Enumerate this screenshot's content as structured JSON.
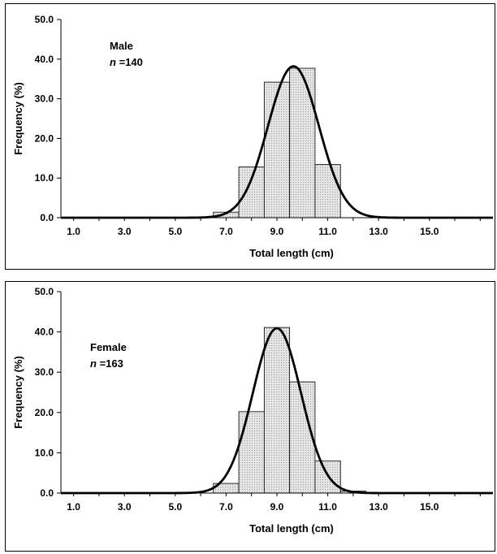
{
  "chart_data": [
    {
      "type": "bar",
      "annotation": {
        "label": "Male",
        "n_prefix": "n",
        "n_value": "=140"
      },
      "xlabel": "Total length (cm)",
      "ylabel": "Frequency (%)",
      "ylim": [
        0,
        50
      ],
      "xlim": [
        0.5,
        17.5
      ],
      "y_ticks": [
        "0.0",
        "10.0",
        "20.0",
        "30.0",
        "40.0",
        "50.0"
      ],
      "x_ticks": [
        "1.0",
        "3.0",
        "5.0",
        "7.0",
        "9.0",
        "11.0",
        "13.0",
        "15.0"
      ],
      "bin_width": 1.0,
      "bins": [
        {
          "x": 7.0,
          "value": 1.4
        },
        {
          "x": 8.0,
          "value": 12.8
        },
        {
          "x": 9.0,
          "value": 34.2
        },
        {
          "x": 10.0,
          "value": 37.7
        },
        {
          "x": 11.0,
          "value": 13.4
        }
      ],
      "curve": {
        "mean": 9.65,
        "sd": 1.0,
        "peak": 38.2
      }
    },
    {
      "type": "bar",
      "annotation": {
        "label": "Female",
        "n_prefix": "n",
        "n_value": "=163"
      },
      "xlabel": "Total length (cm)",
      "ylabel": "Frequency (%)",
      "ylim": [
        0,
        50
      ],
      "xlim": [
        0.5,
        17.5
      ],
      "y_ticks": [
        "0.0",
        "10.0",
        "20.0",
        "30.0",
        "40.0",
        "50.0"
      ],
      "x_ticks": [
        "1.0",
        "3.0",
        "5.0",
        "7.0",
        "9.0",
        "11.0",
        "13.0",
        "15.0"
      ],
      "bin_width": 1.0,
      "bins": [
        {
          "x": 7.0,
          "value": 2.4
        },
        {
          "x": 8.0,
          "value": 20.2
        },
        {
          "x": 9.0,
          "value": 41.1
        },
        {
          "x": 10.0,
          "value": 27.6
        },
        {
          "x": 11.0,
          "value": 8.0
        },
        {
          "x": 12.0,
          "value": 0.5
        }
      ],
      "curve": {
        "mean": 9.0,
        "sd": 0.95,
        "peak": 40.9
      }
    }
  ]
}
